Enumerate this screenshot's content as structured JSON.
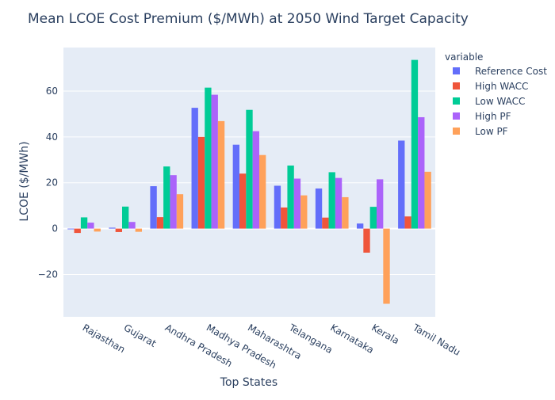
{
  "chart_data": {
    "type": "bar",
    "title": "Mean LCOE Cost Premium ($/MWh) at 2050 Wind Target Capacity",
    "xlabel": "Top States",
    "ylabel": "LCOE ($/MWh)",
    "ylim": [
      -38.5,
      79
    ],
    "yticks": [
      -20,
      0,
      20,
      40,
      60
    ],
    "grid": true,
    "legend_title": "variable",
    "legend_position": "top-right",
    "categories": [
      "Rajasthan",
      "Gujarat",
      "Andhra Pradesh",
      "Madhya Pradesh",
      "Maharashtra",
      "Telangana",
      "Karnataka",
      "Kerala",
      "Tamil Nadu"
    ],
    "series": [
      {
        "name": "Reference Cost",
        "color": "#636efa",
        "values": [
          -0.3,
          0.4,
          18.5,
          52.7,
          36.6,
          18.7,
          17.5,
          2.2,
          38.4
        ]
      },
      {
        "name": "High WACC",
        "color": "#ef553b",
        "values": [
          -1.9,
          -1.5,
          5.0,
          40.0,
          24.0,
          9.2,
          4.8,
          -10.5,
          5.3
        ]
      },
      {
        "name": "Low WACC",
        "color": "#00cc96",
        "values": [
          4.9,
          9.6,
          27.1,
          61.5,
          51.8,
          27.5,
          24.6,
          9.5,
          73.6
        ]
      },
      {
        "name": "High PF",
        "color": "#ab63fa",
        "values": [
          2.6,
          2.9,
          23.3,
          58.4,
          42.5,
          21.8,
          22.1,
          21.5,
          48.6
        ]
      },
      {
        "name": "Low PF",
        "color": "#ffa15a",
        "values": [
          -1.3,
          -1.4,
          15.0,
          46.9,
          32.1,
          14.5,
          13.7,
          -32.8,
          24.8
        ]
      }
    ]
  }
}
